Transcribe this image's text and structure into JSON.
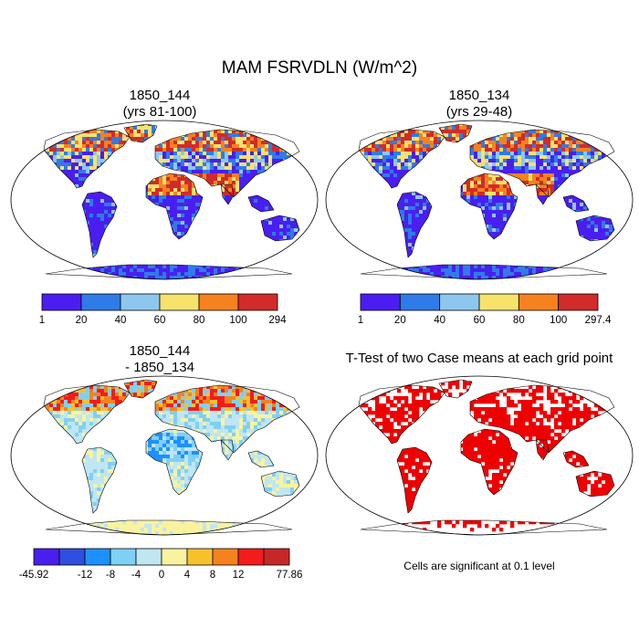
{
  "title": "MAM FSRVDLN (W/m^2)",
  "panels": [
    {
      "title_line1": "1850_144",
      "title_line2": "(yrs 81-100)"
    },
    {
      "title_line1": "1850_134",
      "title_line2": "(yrs 29-48)"
    },
    {
      "title_line1": "1850_144",
      "title_line2": "- 1850_134"
    },
    {
      "title_line1": "T-Test of two Case means at each grid point",
      "title_line2": ""
    }
  ],
  "significance_note": "Cells are significant at 0.1 level",
  "chart_data": [
    {
      "type": "heatmap",
      "title": "1850_144 (yrs 81-100)",
      "colorbar": {
        "labels": [
          "1",
          "20",
          "40",
          "60",
          "80",
          "100",
          "294"
        ],
        "colors": [
          "#4a1ef0",
          "#2f7be8",
          "#8ec7ee",
          "#f7e26b",
          "#f5821f",
          "#d12b2b"
        ]
      },
      "pattern": {
        "tropics": "low",
        "sahara_arabia": "high",
        "high_latitude_nh": "high",
        "antarctica": "low"
      }
    },
    {
      "type": "heatmap",
      "title": "1850_134 (yrs 29-48)",
      "colorbar": {
        "labels": [
          "1",
          "20",
          "40",
          "60",
          "80",
          "100",
          "297.4"
        ],
        "colors": [
          "#4a1ef0",
          "#2f7be8",
          "#8ec7ee",
          "#f7e26b",
          "#f5821f",
          "#d12b2b"
        ]
      },
      "pattern": {
        "tropics": "low",
        "sahara_arabia": "high",
        "high_latitude_nh": "high",
        "antarctica": "low"
      }
    },
    {
      "type": "heatmap",
      "title": "1850_144 - 1850_134",
      "colorbar": {
        "labels": [
          "-45.92",
          "",
          "-12",
          "-8",
          "-4",
          "0",
          "4",
          "8",
          "12",
          "",
          "77.86"
        ],
        "colors": [
          "#4a1ef0",
          "#2f4fe0",
          "#1e90ff",
          "#7fd0f5",
          "#bfe6f2",
          "#f9f3a0",
          "#f7c12e",
          "#f5821f",
          "#f21c1c",
          "#c62828"
        ]
      },
      "pattern": {
        "sahara": "negative",
        "high_latitude_nh": "positive",
        "elsewhere": "near zero"
      }
    },
    {
      "type": "heatmap",
      "title": "T-Test of two Case means at each grid point",
      "significant_color": "#ee0000",
      "pattern": "significant cells cover most land areas"
    }
  ]
}
